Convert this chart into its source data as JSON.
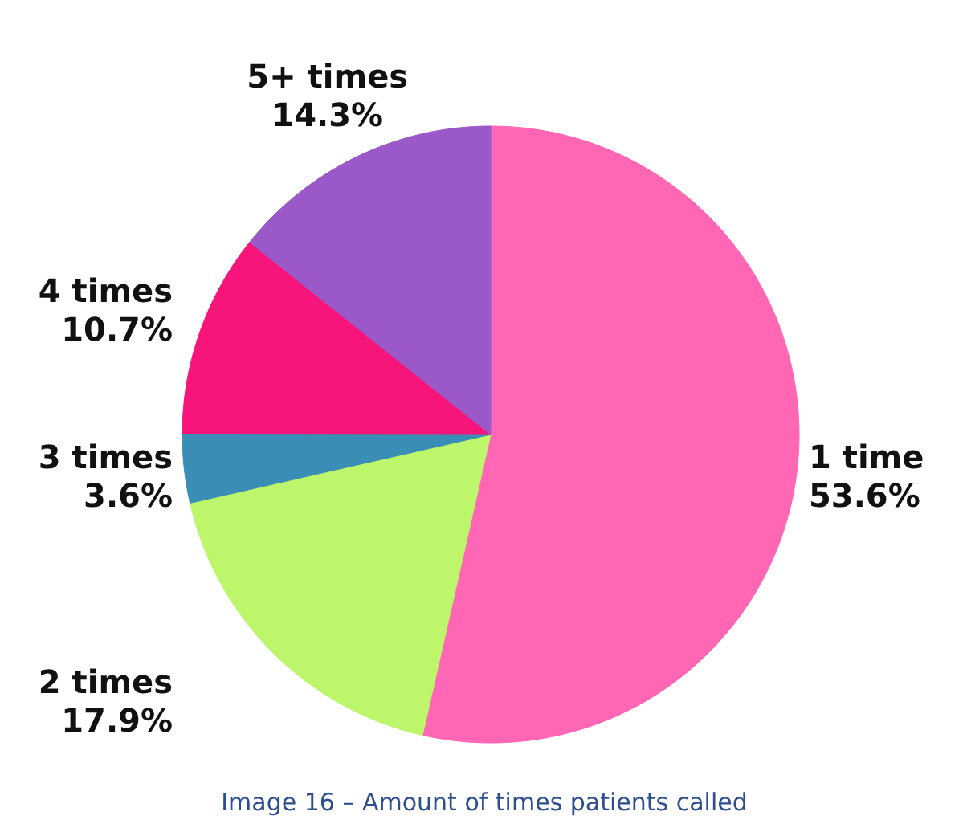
{
  "chart_data": {
    "type": "pie",
    "categories": [
      "1 time",
      "2 times",
      "3 times",
      "4 times",
      "5+ times"
    ],
    "values": [
      53.6,
      17.9,
      3.6,
      10.7,
      14.3
    ],
    "value_labels": [
      "53.6%",
      "17.9%",
      "3.6%",
      "10.7%",
      "14.3%"
    ],
    "colors": [
      "#ff66b4",
      "#bdf56b",
      "#3a8db5",
      "#f7157c",
      "#9a58c8"
    ],
    "annotations": [
      "Image 16 – Amount of times patients called"
    ]
  }
}
